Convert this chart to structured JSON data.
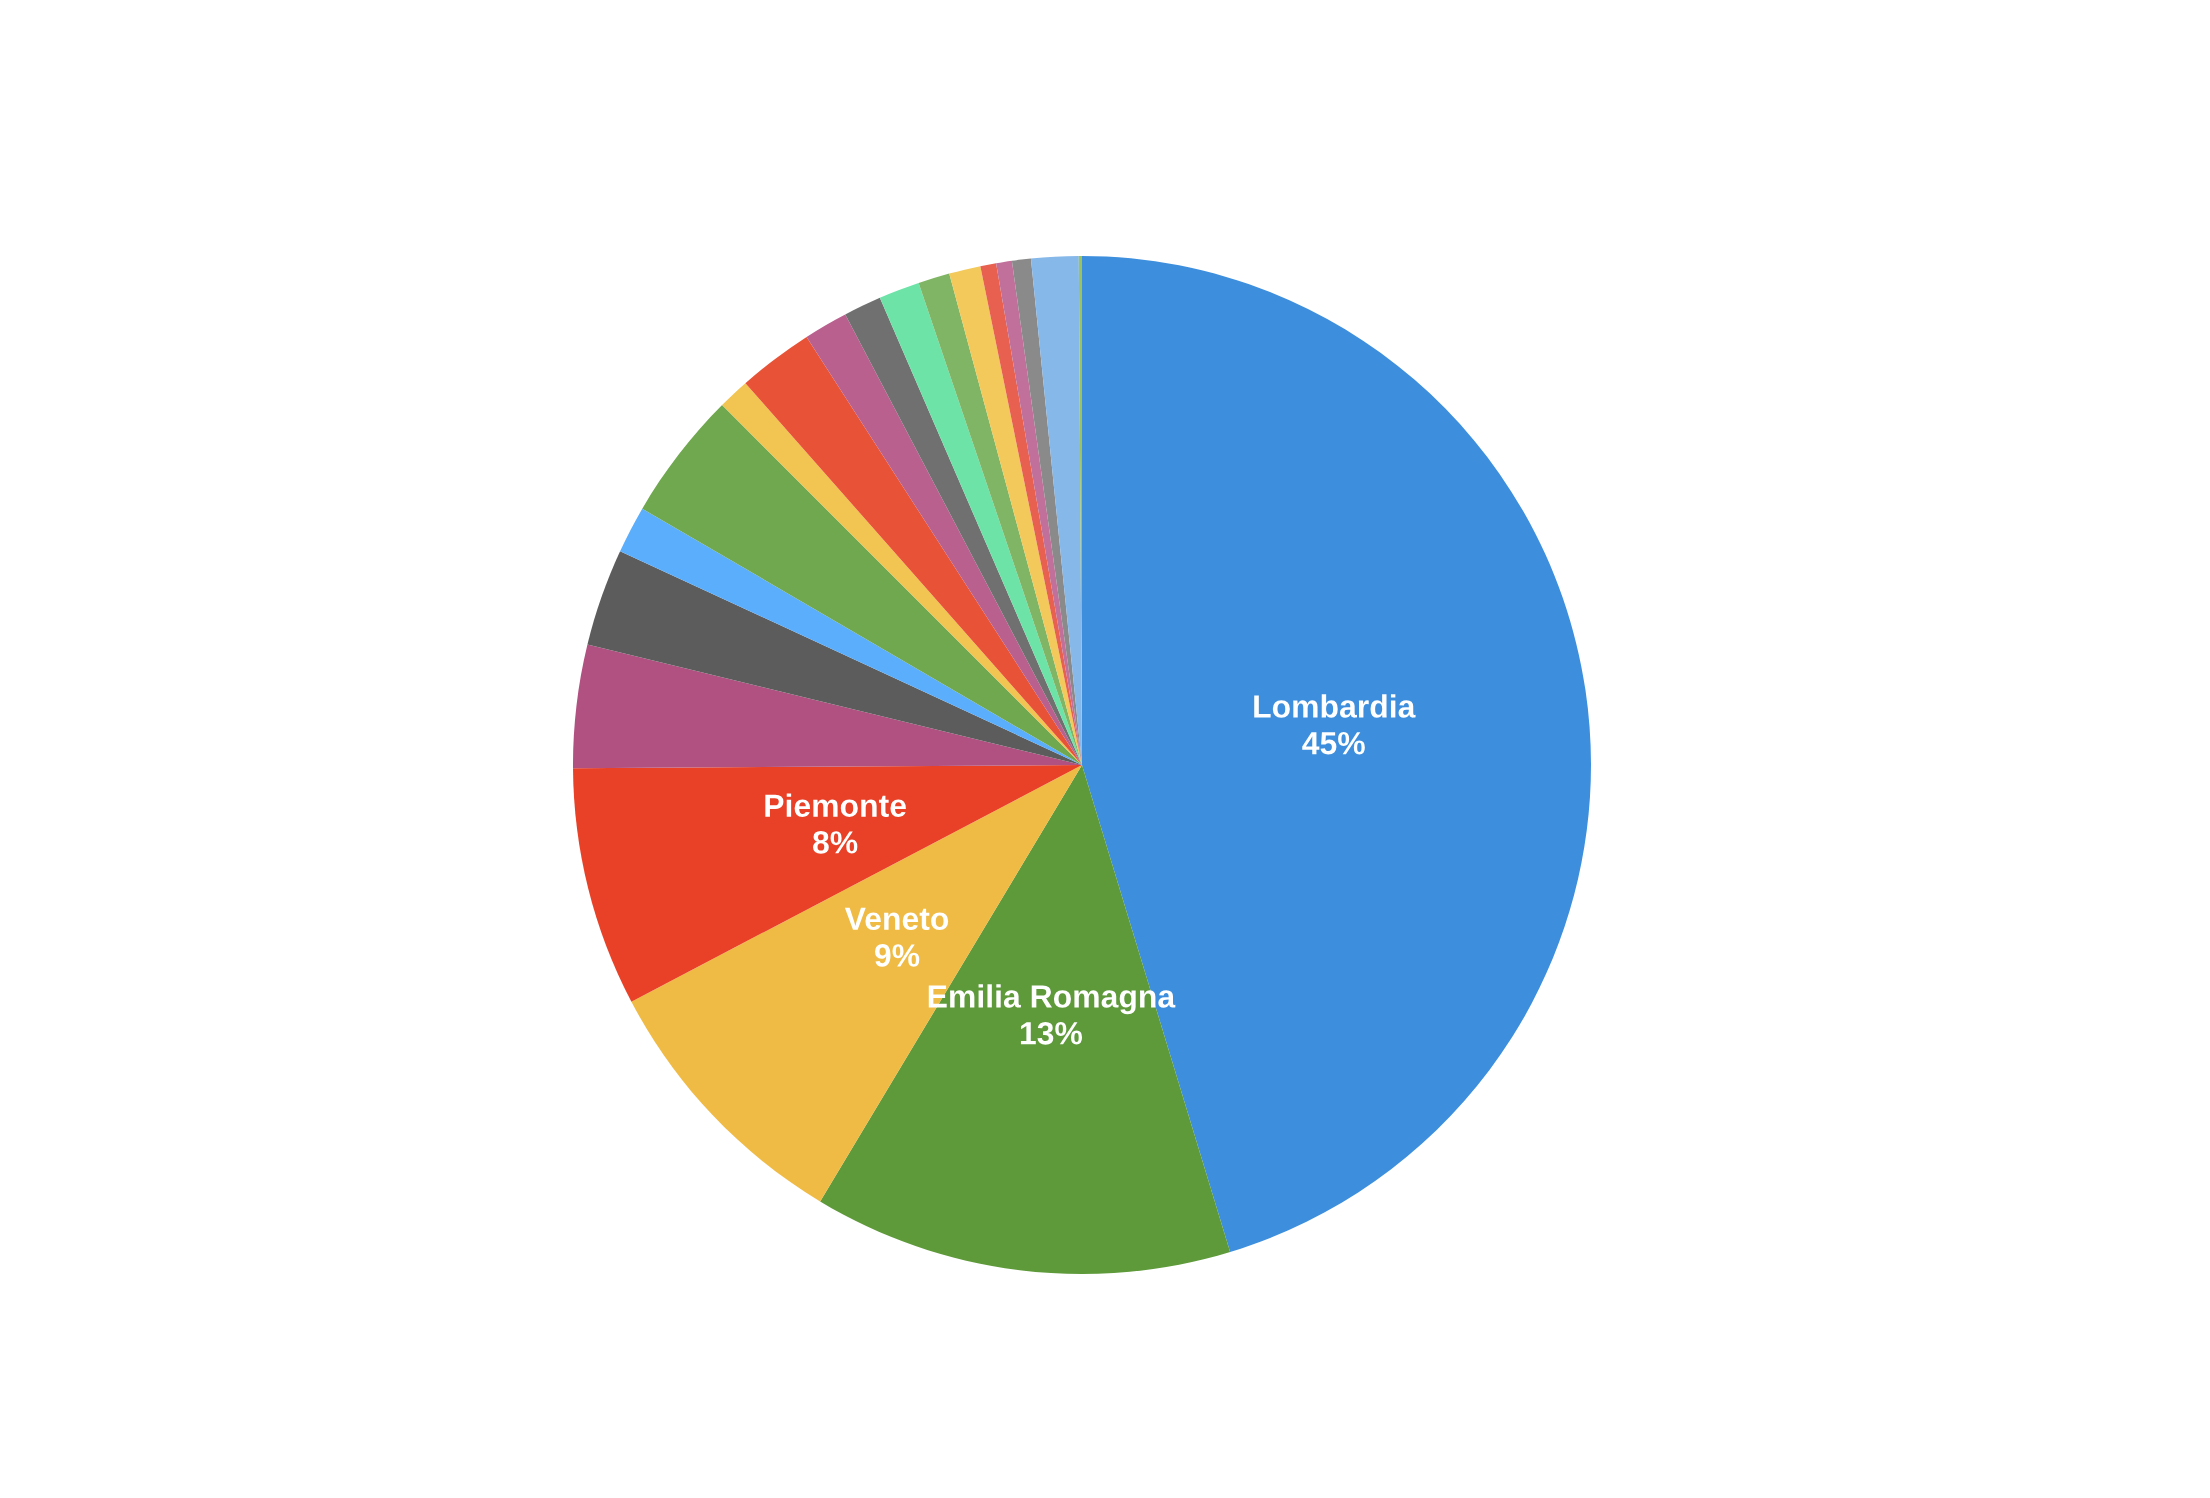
{
  "chart_data": {
    "type": "pie",
    "categories": [
      "Lombardia",
      "Emilia Romagna",
      "Veneto",
      "Piemonte",
      null,
      null,
      null,
      null,
      null,
      null,
      null,
      null,
      null,
      null,
      null,
      null,
      null,
      null,
      null,
      null
    ],
    "values": [
      45.3,
      13.3,
      8.7,
      7.6,
      3.9,
      3.1,
      1.5,
      4.1,
      1.0,
      2.4,
      1.4,
      1.2,
      1.3,
      1.0,
      1.0,
      0.5,
      0.5,
      0.6,
      1.5,
      0.1
    ],
    "value_labels": [
      "45%",
      "13%",
      "9%",
      "8%",
      null,
      null,
      null,
      null,
      null,
      null,
      null,
      null,
      null,
      null,
      null,
      null,
      null,
      null,
      null,
      null
    ],
    "colors": [
      "#3d8fdd",
      "#5e9a3a",
      "#efbb44",
      "#e84127",
      "#b15181",
      "#5c5c5c",
      "#5aaefc",
      "#6fa84e",
      "#f2c553",
      "#e85338",
      "#b9608f",
      "#707070",
      "#6de3a8",
      "#80b565",
      "#f2c95a",
      "#e8604f",
      "#c0709a",
      "#8a8a8a",
      "#86b8ea",
      "#9bc35a"
    ]
  }
}
